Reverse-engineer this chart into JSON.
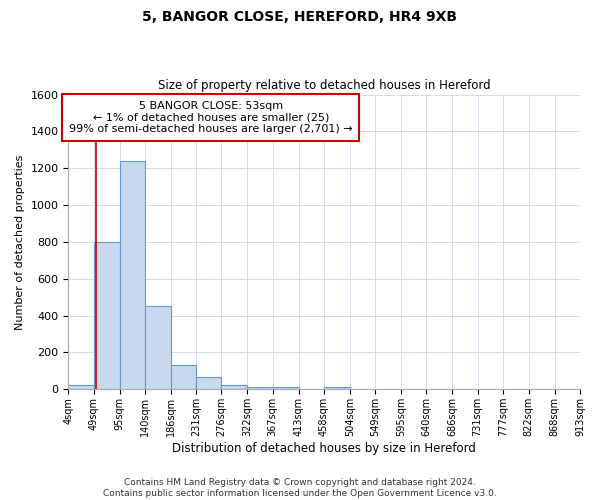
{
  "title1": "5, BANGOR CLOSE, HEREFORD, HR4 9XB",
  "title2": "Size of property relative to detached houses in Hereford",
  "xlabel": "Distribution of detached houses by size in Hereford",
  "ylabel": "Number of detached properties",
  "footnote": "Contains HM Land Registry data © Crown copyright and database right 2024.\nContains public sector information licensed under the Open Government Licence v3.0.",
  "bin_edges": [
    4,
    49,
    95,
    140,
    186,
    231,
    276,
    322,
    367,
    413,
    458,
    504,
    549,
    595,
    640,
    686,
    731,
    777,
    822,
    868,
    913
  ],
  "bar_heights": [
    25,
    800,
    1240,
    450,
    130,
    65,
    25,
    15,
    15,
    0,
    15,
    0,
    0,
    0,
    0,
    0,
    0,
    0,
    0,
    0
  ],
  "bar_color": "#c8d8ee",
  "bar_edge_color": "#6699cc",
  "grid_color": "#d0dce8",
  "background_color": "#ffffff",
  "vline_x": 53,
  "vline_color": "#cc0000",
  "annotation_text": "5 BANGOR CLOSE: 53sqm\n← 1% of detached houses are smaller (25)\n99% of semi-detached houses are larger (2,701) →",
  "annotation_box_color": "#ffffff",
  "annotation_border_color": "#cc0000",
  "ylim": [
    0,
    1600
  ],
  "yticks": [
    0,
    200,
    400,
    600,
    800,
    1000,
    1200,
    1400,
    1600
  ]
}
